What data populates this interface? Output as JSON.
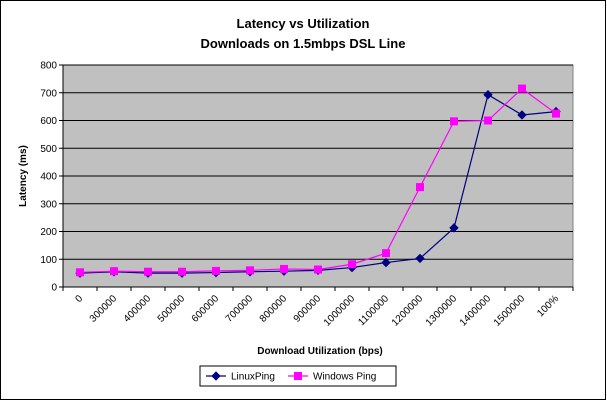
{
  "chart_data": {
    "type": "line",
    "title": "Latency vs Utilization",
    "subtitle": "Downloads on 1.5mbps DSL Line",
    "xlabel": "Download Utilization (bps)",
    "ylabel": "Latency (ms)",
    "categories": [
      "0",
      "300000",
      "400000",
      "500000",
      "600000",
      "700000",
      "800000",
      "900000",
      "1000000",
      "1100000",
      "1200000",
      "1300000",
      "1400000",
      "1500000",
      "100%"
    ],
    "ylim": [
      0,
      800
    ],
    "yticks": [
      "0",
      "100",
      "200",
      "300",
      "400",
      "500",
      "600",
      "700",
      "800"
    ],
    "grid": true,
    "legend_position": "bottom",
    "series": [
      {
        "name": "LinuxPing",
        "color": "#000080",
        "marker": "diamond",
        "values": [
          50,
          55,
          50,
          50,
          52,
          55,
          57,
          60,
          70,
          88,
          103,
          213,
          693,
          620,
          632
        ]
      },
      {
        "name": "Windows Ping",
        "color": "#ff00ff",
        "marker": "square",
        "values": [
          53,
          57,
          55,
          55,
          58,
          60,
          65,
          63,
          82,
          122,
          360,
          597,
          600,
          715,
          625
        ]
      }
    ]
  },
  "colors": {
    "plot_background": "#c0c0c0",
    "page_background": "#ffffff",
    "gridline": "#000000"
  }
}
